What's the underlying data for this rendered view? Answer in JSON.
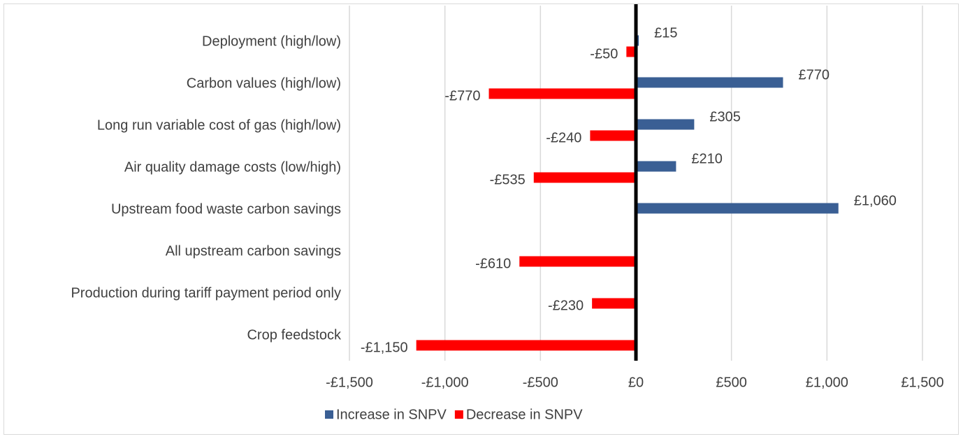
{
  "chart_data": {
    "type": "bar",
    "orientation": "horizontal",
    "categories": [
      "Deployment (high/low)",
      "Carbon values (high/low)",
      "Long run variable cost of gas (high/low)",
      "Air quality damage costs (low/high)",
      "Upstream food waste carbon savings",
      "All upstream carbon savings",
      "Production during tariff payment period only",
      "Crop feedstock"
    ],
    "series": [
      {
        "name": "Increase in SNPV",
        "color": "#3a5f94",
        "values": [
          15,
          770,
          305,
          210,
          1060,
          null,
          null,
          null
        ],
        "value_labels": [
          "£15",
          "£770",
          "£305",
          "£210",
          "£1,060",
          null,
          null,
          null
        ]
      },
      {
        "name": "Decrease in SNPV",
        "color": "#ff0000",
        "values": [
          -50,
          -770,
          -240,
          -535,
          null,
          -610,
          -230,
          -1150
        ],
        "value_labels": [
          "-£50",
          "-£770",
          "-£240",
          "-£535",
          null,
          "-£610",
          "-£230",
          "-£1,150"
        ]
      }
    ],
    "xlim": [
      -1500,
      1500
    ],
    "xticks": [
      {
        "value": -1500,
        "label": "-£1,500"
      },
      {
        "value": -1000,
        "label": "-£1,000"
      },
      {
        "value": -500,
        "label": "-£500"
      },
      {
        "value": 0,
        "label": "£0"
      },
      {
        "value": 500,
        "label": "£500"
      },
      {
        "value": 1000,
        "label": "£1,000"
      },
      {
        "value": 1500,
        "label": "£1,500"
      }
    ],
    "grid": true,
    "legend": "bottom"
  }
}
